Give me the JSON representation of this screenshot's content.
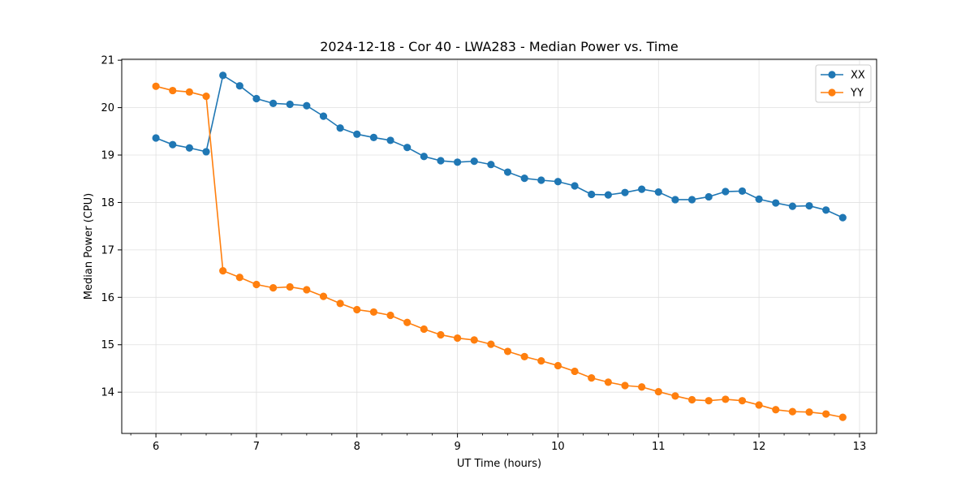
{
  "chart_data": {
    "type": "line",
    "title": "2024-12-18 - Cor 40 - LWA283 - Median Power vs. Time",
    "xlabel": "UT Time (hours)",
    "ylabel": "Median Power (CPU)",
    "xlim": [
      5.66,
      13.17
    ],
    "ylim": [
      13.13,
      21.02
    ],
    "xticks": [
      6,
      7,
      8,
      9,
      10,
      11,
      12,
      13
    ],
    "yticks": [
      14,
      15,
      16,
      17,
      18,
      19,
      20,
      21
    ],
    "grid": true,
    "legend_position": "top-right",
    "x": [
      6.0,
      6.1667,
      6.3333,
      6.5,
      6.6667,
      6.8333,
      7.0,
      7.1667,
      7.3333,
      7.5,
      7.6667,
      7.8333,
      8.0,
      8.1667,
      8.3333,
      8.5,
      8.6667,
      8.8333,
      9.0,
      9.1667,
      9.3333,
      9.5,
      9.6667,
      9.8333,
      10.0,
      10.1667,
      10.3333,
      10.5,
      10.6667,
      10.8333,
      11.0,
      11.1667,
      11.3333,
      11.5,
      11.6667,
      11.8333,
      12.0,
      12.1667,
      12.3333,
      12.5,
      12.6667,
      12.8333
    ],
    "series": [
      {
        "name": "XX",
        "color": "#1f77b4",
        "values": [
          19.36,
          19.22,
          19.15,
          19.07,
          20.68,
          20.46,
          20.19,
          20.09,
          20.07,
          20.04,
          19.82,
          19.57,
          19.44,
          19.37,
          19.31,
          19.16,
          18.97,
          18.88,
          18.85,
          18.87,
          18.8,
          18.64,
          18.51,
          18.47,
          18.44,
          18.35,
          18.17,
          18.16,
          18.21,
          18.28,
          18.22,
          18.06,
          18.06,
          18.12,
          18.23,
          18.24,
          18.07,
          17.99,
          17.92,
          17.93,
          17.84,
          17.68
        ]
      },
      {
        "name": "YY",
        "color": "#ff7f0e",
        "values": [
          20.45,
          20.36,
          20.33,
          20.24,
          16.56,
          16.42,
          16.27,
          16.2,
          16.22,
          16.16,
          16.02,
          15.87,
          15.74,
          15.69,
          15.62,
          15.47,
          15.33,
          15.21,
          15.14,
          15.1,
          15.01,
          14.86,
          14.75,
          14.66,
          14.56,
          14.44,
          14.3,
          14.21,
          14.14,
          14.11,
          14.01,
          13.92,
          13.84,
          13.82,
          13.85,
          13.82,
          13.73,
          13.63,
          13.59,
          13.58,
          13.54,
          13.47
        ]
      }
    ]
  }
}
